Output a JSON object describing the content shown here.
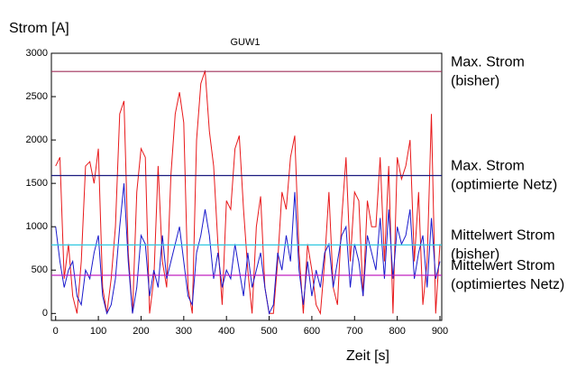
{
  "chart_data": {
    "type": "line",
    "title": "GUW1",
    "y_label": "Strom [A]",
    "x_label": "Zeit [s]",
    "x": [
      0,
      10,
      20,
      30,
      40,
      50,
      60,
      70,
      80,
      90,
      100,
      110,
      120,
      130,
      140,
      150,
      160,
      170,
      180,
      190,
      200,
      210,
      220,
      230,
      240,
      250,
      260,
      270,
      280,
      290,
      300,
      310,
      320,
      330,
      340,
      350,
      360,
      370,
      380,
      390,
      400,
      410,
      420,
      430,
      440,
      450,
      460,
      470,
      480,
      490,
      500,
      510,
      520,
      530,
      540,
      550,
      560,
      570,
      580,
      590,
      600,
      610,
      620,
      630,
      640,
      650,
      660,
      670,
      680,
      690,
      700,
      710,
      720,
      730,
      740,
      750,
      760,
      770,
      780,
      790,
      800,
      810,
      820,
      830,
      840,
      850,
      860,
      870,
      880,
      890,
      900
    ],
    "series": [
      {
        "color": "#e8181a",
        "values": [
          1700,
          1800,
          400,
          800,
          200,
          0,
          600,
          1700,
          1750,
          1500,
          1900,
          300,
          0,
          400,
          1000,
          2300,
          2450,
          700,
          0,
          1400,
          1900,
          1800,
          0,
          400,
          1700,
          600,
          300,
          1600,
          2300,
          2550,
          2200,
          300,
          0,
          2000,
          2650,
          2800,
          2100,
          1700,
          800,
          100,
          1300,
          1200,
          1900,
          2050,
          1200,
          500,
          0,
          1000,
          1350,
          300,
          0,
          0,
          600,
          1400,
          1200,
          1800,
          2050,
          700,
          0,
          800,
          500,
          100,
          0,
          600,
          1400,
          300,
          100,
          1100,
          1800,
          600,
          1400,
          1300,
          200,
          1300,
          1000,
          1000,
          1800,
          600,
          1700,
          0,
          1800,
          1550,
          1700,
          2000,
          600,
          1400,
          100,
          600,
          2300,
          0,
          800
        ]
      },
      {
        "color": "#1a1acc",
        "values": [
          1000,
          600,
          300,
          500,
          600,
          200,
          100,
          500,
          400,
          700,
          900,
          200,
          0,
          100,
          400,
          1000,
          1500,
          600,
          0,
          300,
          900,
          800,
          200,
          500,
          300,
          900,
          400,
          600,
          800,
          1000,
          600,
          200,
          100,
          700,
          900,
          1200,
          900,
          400,
          700,
          300,
          500,
          400,
          800,
          500,
          200,
          700,
          300,
          500,
          700,
          300,
          0,
          100,
          700,
          500,
          900,
          600,
          1400,
          500,
          100,
          600,
          200,
          500,
          300,
          700,
          800,
          300,
          600,
          900,
          1000,
          300,
          800,
          600,
          200,
          900,
          700,
          500,
          1100,
          400,
          1200,
          400,
          1000,
          800,
          900,
          1200,
          400,
          700,
          900,
          300,
          1100,
          400,
          600
        ]
      }
    ],
    "reference_lines": [
      {
        "value": 2790,
        "color": "#a0305a",
        "label": [
          "Max. Strom",
          "(bisher)"
        ]
      },
      {
        "value": 1590,
        "color": "#1a1a80",
        "label": [
          "Max. Strom",
          "(optimierte Netz)"
        ]
      },
      {
        "value": 790,
        "color": "#30c8e0",
        "label": [
          "Mittelwert Strom",
          "(bisher)"
        ]
      },
      {
        "value": 440,
        "color": "#c020c0",
        "label": [
          "Mittelwert Strom",
          "(optimiertes Netz)"
        ]
      }
    ],
    "xlim": [
      -10,
      900
    ],
    "ylim": [
      -80,
      3000
    ],
    "xticks": [
      0,
      100,
      200,
      300,
      400,
      500,
      600,
      700,
      800,
      900
    ],
    "yticks": [
      0,
      500,
      1000,
      1500,
      2000,
      2500,
      3000
    ]
  }
}
